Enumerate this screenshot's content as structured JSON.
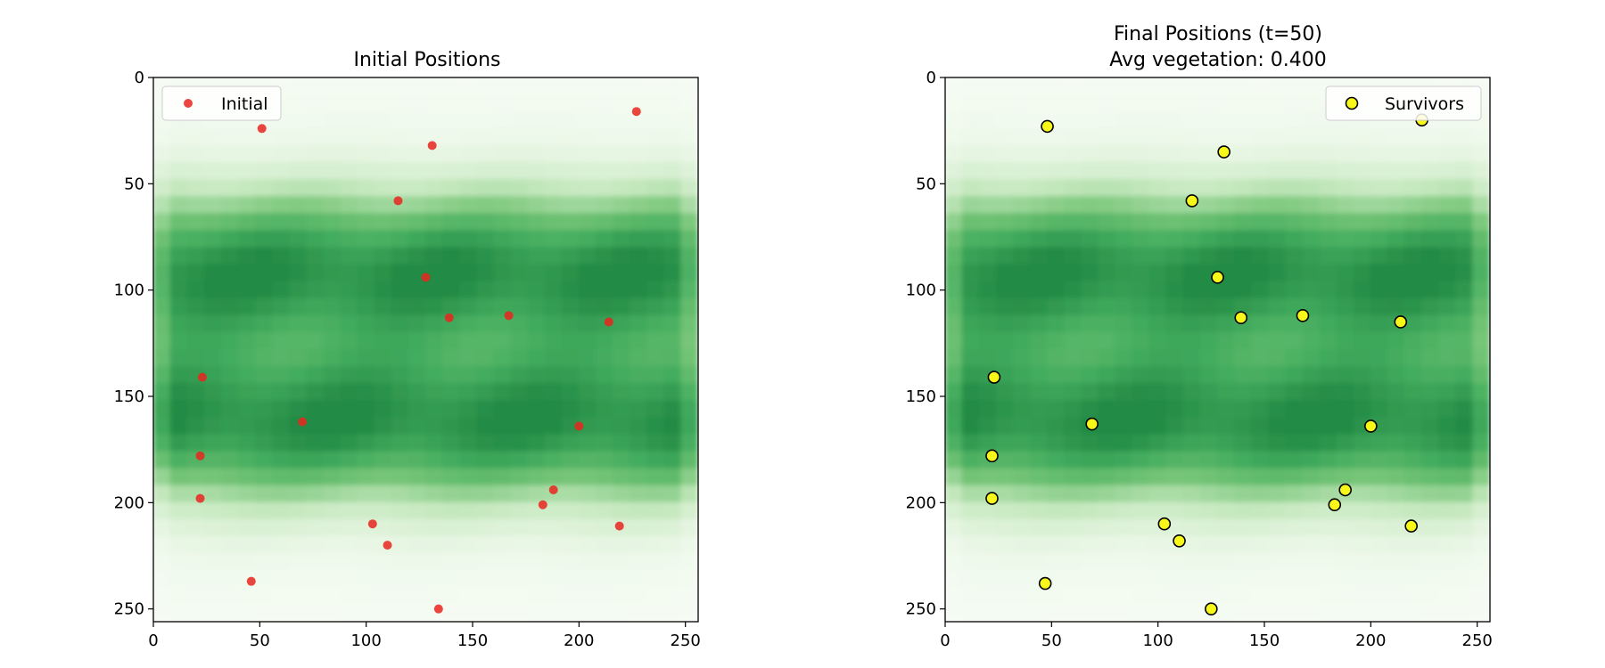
{
  "chart_data": [
    {
      "type": "scatter",
      "title": "Initial Positions",
      "subtitle": "",
      "background": "heatmap",
      "colormap": "Greens",
      "xlim": [
        0,
        256
      ],
      "ylim": [
        256,
        0
      ],
      "xticks": [
        0,
        50,
        100,
        150,
        200,
        250
      ],
      "yticks": [
        0,
        50,
        100,
        150,
        200,
        250
      ],
      "legend": {
        "position": "top-left",
        "entries": [
          "Initial"
        ]
      },
      "grid": false,
      "series": [
        {
          "name": "Initial",
          "color": "#e8261f",
          "edge_color": "",
          "x": [
            51,
            227,
            131,
            115,
            128,
            139,
            167,
            214,
            23,
            70,
            200,
            22,
            22,
            188,
            183,
            219,
            103,
            110,
            46,
            134
          ],
          "y": [
            24,
            16,
            32,
            58,
            94,
            113,
            112,
            115,
            141,
            162,
            164,
            178,
            198,
            194,
            201,
            211,
            210,
            220,
            237,
            250
          ]
        }
      ]
    },
    {
      "type": "scatter",
      "title": "Final Positions (t=50)",
      "subtitle": "Avg vegetation: 0.400",
      "background": "heatmap",
      "colormap": "Greens",
      "xlim": [
        0,
        256
      ],
      "ylim": [
        256,
        0
      ],
      "xticks": [
        0,
        50,
        100,
        150,
        200,
        250
      ],
      "yticks": [
        0,
        50,
        100,
        150,
        200,
        250
      ],
      "legend": {
        "position": "top-right",
        "entries": [
          "Survivors"
        ]
      },
      "grid": false,
      "series": [
        {
          "name": "Survivors",
          "color": "#f7f71a",
          "edge_color": "#000000",
          "x": [
            48,
            224,
            131,
            116,
            128,
            139,
            168,
            214,
            23,
            69,
            200,
            22,
            22,
            188,
            183,
            219,
            103,
            110,
            47,
            125
          ],
          "y": [
            23,
            20,
            35,
            58,
            94,
            113,
            112,
            115,
            141,
            163,
            164,
            178,
            198,
            194,
            201,
            211,
            210,
            218,
            238,
            250
          ]
        }
      ]
    }
  ]
}
